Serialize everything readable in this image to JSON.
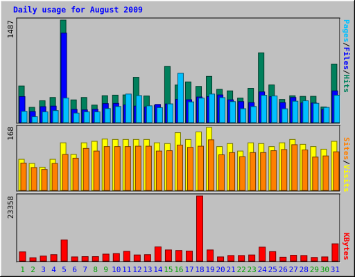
{
  "title": "Daily usage for August 2009",
  "colors": {
    "background": "#c0c0c0",
    "title": "#0000ff",
    "hits": "#00805c",
    "files": "#0000ff",
    "pages": "#00c0ff",
    "visits": "#ffff00",
    "sites": "#ff8000",
    "kbytes": "#ff0000",
    "weekend_day": "#00a000",
    "weekday": "#0000ff"
  },
  "chart_data": [
    {
      "type": "bar",
      "name": "pages-files-hits",
      "max_label": "1487",
      "ylim": [
        0,
        1487
      ],
      "legend_parts": [
        "Pages",
        "/",
        "Files",
        "/",
        "Hits"
      ],
      "categories": [
        "1",
        "2",
        "3",
        "4",
        "5",
        "6",
        "7",
        "8",
        "9",
        "10",
        "11",
        "12",
        "13",
        "14",
        "15",
        "16",
        "17",
        "18",
        "19",
        "20",
        "21",
        "22",
        "23",
        "24",
        "25",
        "26",
        "27",
        "28",
        "29",
        "30",
        "31"
      ],
      "series": [
        {
          "name": "Hits",
          "values": [
            531,
            221,
            317,
            364,
            1487,
            329,
            364,
            254,
            390,
            398,
            401,
            657,
            386,
            249,
            816,
            545,
            590,
            525,
            670,
            482,
            460,
            356,
            497,
            1012,
            546,
            335,
            389,
            380,
            381,
            227,
            849
          ]
        },
        {
          "name": "Files",
          "values": [
            377,
            160,
            231,
            239,
            1298,
            191,
            184,
            193,
            275,
            278,
            257,
            239,
            227,
            263,
            270,
            336,
            331,
            371,
            377,
            401,
            330,
            304,
            290,
            445,
            376,
            290,
            364,
            285,
            284,
            190,
            460
          ]
        },
        {
          "name": "Pages",
          "values": [
            163,
            85,
            155,
            174,
            356,
            138,
            155,
            155,
            203,
            233,
            414,
            391,
            243,
            217,
            271,
            716,
            300,
            355,
            414,
            362,
            304,
            201,
            233,
            396,
            386,
            200,
            310,
            316,
            279,
            220,
            397
          ]
        }
      ]
    },
    {
      "type": "bar",
      "name": "sites-visits",
      "max_label": "168",
      "ylim": [
        0,
        168
      ],
      "legend_parts": [
        "Sites",
        "/",
        "Visits"
      ],
      "categories": [
        "1",
        "2",
        "3",
        "4",
        "5",
        "6",
        "7",
        "8",
        "9",
        "10",
        "11",
        "12",
        "13",
        "14",
        "15",
        "16",
        "17",
        "18",
        "19",
        "20",
        "21",
        "22",
        "23",
        "24",
        "25",
        "26",
        "27",
        "28",
        "29",
        "30",
        "31"
      ],
      "series": [
        {
          "name": "Visits",
          "values": [
            83,
            72,
            62,
            83,
            127,
            96,
            127,
            131,
            137,
            136,
            136,
            136,
            136,
            127,
            125,
            154,
            136,
            156,
            168,
            117,
            125,
            105,
            127,
            125,
            117,
            127,
            136,
            123,
            117,
            110,
            131
          ]
        },
        {
          "name": "Sites",
          "values": [
            73,
            61,
            56,
            72,
            96,
            86,
            112,
            105,
            117,
            117,
            117,
            118,
            118,
            105,
            106,
            121,
            115,
            118,
            135,
            95,
            101,
            90,
            101,
            101,
            106,
            109,
            122,
            108,
            89,
            92,
            103
          ]
        }
      ]
    },
    {
      "type": "bar",
      "name": "kbytes",
      "max_label": "23358",
      "ylim": [
        0,
        23358
      ],
      "legend_parts": [
        "KBytes"
      ],
      "categories": [
        "1",
        "2",
        "3",
        "4",
        "5",
        "6",
        "7",
        "8",
        "9",
        "10",
        "11",
        "12",
        "13",
        "14",
        "15",
        "16",
        "17",
        "18",
        "19",
        "20",
        "21",
        "22",
        "23",
        "24",
        "25",
        "26",
        "27",
        "28",
        "29",
        "30",
        "31"
      ],
      "weekend_days": [
        "1",
        "2",
        "8",
        "9",
        "15",
        "16",
        "22",
        "23",
        "29",
        "30"
      ],
      "series": [
        {
          "name": "KBytes",
          "values": [
            3300,
            1200,
            1800,
            2300,
            7600,
            1500,
            1600,
            1600,
            2500,
            2700,
            3500,
            2200,
            2300,
            5100,
            4000,
            3800,
            3600,
            23358,
            4000,
            1500,
            2000,
            2000,
            2200,
            5000,
            3400,
            1400,
            2100,
            2000,
            1300,
            1500,
            6200
          ]
        }
      ]
    }
  ]
}
